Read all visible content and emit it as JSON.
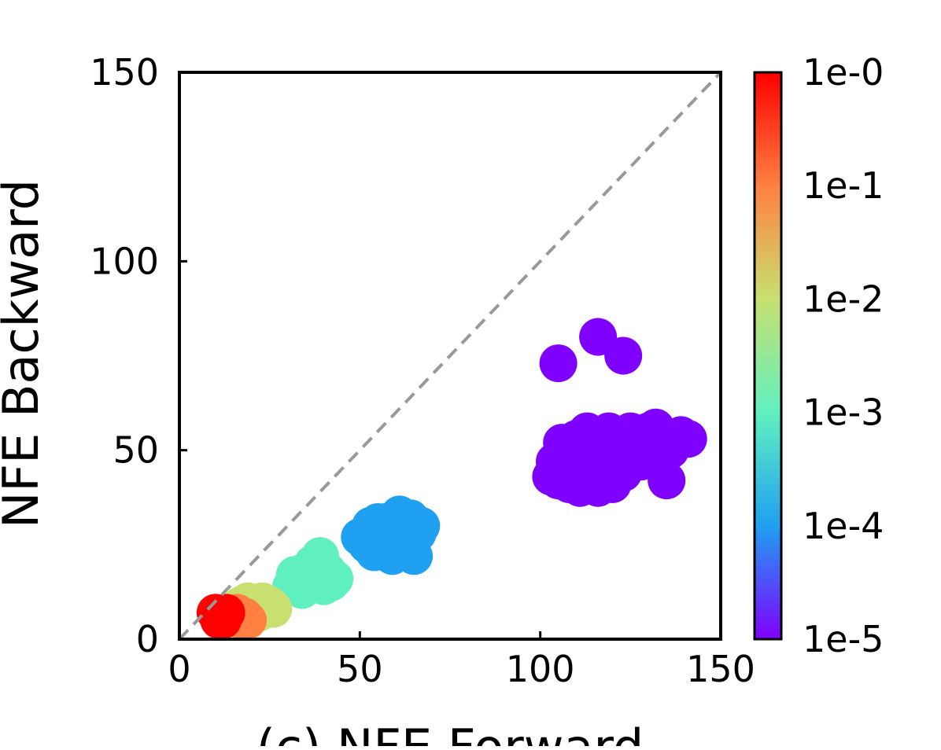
{
  "chart_data": {
    "type": "scatter",
    "title": "",
    "xlabel": "(c) NFE Forward",
    "ylabel": "NFE Backward",
    "xlim": [
      0,
      150
    ],
    "ylim": [
      0,
      150
    ],
    "xticks": [
      0,
      50,
      100,
      150
    ],
    "yticks": [
      0,
      50,
      100,
      150
    ],
    "xtick_labels": [
      "0",
      "50",
      "100",
      "150"
    ],
    "ytick_labels": [
      "0",
      "50",
      "100",
      "150"
    ],
    "grid": false,
    "reference_line": {
      "style": "dashed",
      "color": "#999999",
      "from": [
        0,
        0
      ],
      "to": [
        150,
        150
      ]
    },
    "colorbar": {
      "colormap": "rainbow",
      "scale": "log",
      "labels": [
        "1e-0",
        "1e-1",
        "1e-2",
        "1e-3",
        "1e-4",
        "1e-5"
      ],
      "colors": [
        "#ff0000",
        "#ff8040",
        "#c8e070",
        "#60f0c0",
        "#20a0f0",
        "#7f00ff"
      ]
    },
    "series": [
      {
        "tolerance": "1e-5",
        "color": "#7f00ff",
        "points": [
          [
            103,
            43
          ],
          [
            104,
            47
          ],
          [
            105,
            42
          ],
          [
            106,
            52
          ],
          [
            107,
            45
          ],
          [
            108,
            50
          ],
          [
            108,
            41
          ],
          [
            109,
            48
          ],
          [
            110,
            53
          ],
          [
            110,
            44
          ],
          [
            111,
            40
          ],
          [
            112,
            47
          ],
          [
            112,
            51
          ],
          [
            113,
            55
          ],
          [
            114,
            42
          ],
          [
            114,
            49
          ],
          [
            115,
            45
          ],
          [
            116,
            53
          ],
          [
            116,
            40
          ],
          [
            117,
            47
          ],
          [
            118,
            51
          ],
          [
            118,
            43
          ],
          [
            119,
            55
          ],
          [
            120,
            46
          ],
          [
            120,
            41
          ],
          [
            121,
            50
          ],
          [
            122,
            53
          ],
          [
            123,
            44
          ],
          [
            124,
            48
          ],
          [
            125,
            55
          ],
          [
            126,
            50
          ],
          [
            127,
            52
          ],
          [
            128,
            47
          ],
          [
            130,
            55
          ],
          [
            131,
            51
          ],
          [
            132,
            56
          ],
          [
            134,
            53
          ],
          [
            136,
            50
          ],
          [
            139,
            54
          ],
          [
            141,
            53
          ],
          [
            135,
            42
          ],
          [
            105,
            73
          ],
          [
            116,
            80
          ],
          [
            123,
            75
          ]
        ]
      },
      {
        "tolerance": "1e-4",
        "color": "#20a0f0",
        "points": [
          [
            50,
            27
          ],
          [
            52,
            25
          ],
          [
            53,
            30
          ],
          [
            54,
            23
          ],
          [
            55,
            28
          ],
          [
            56,
            25
          ],
          [
            57,
            31
          ],
          [
            58,
            26
          ],
          [
            59,
            22
          ],
          [
            60,
            29
          ],
          [
            61,
            33
          ],
          [
            62,
            24
          ],
          [
            63,
            30
          ],
          [
            64,
            26
          ],
          [
            65,
            22
          ],
          [
            66,
            28
          ],
          [
            67,
            30
          ],
          [
            55,
            31
          ],
          [
            61,
            27
          ],
          [
            64,
            32
          ]
        ]
      },
      {
        "tolerance": "1e-3",
        "color": "#60f0c0",
        "points": [
          [
            31,
            14
          ],
          [
            32,
            17
          ],
          [
            34,
            13
          ],
          [
            35,
            18
          ],
          [
            36,
            15
          ],
          [
            37,
            20
          ],
          [
            38,
            16
          ],
          [
            39,
            22
          ],
          [
            40,
            14
          ],
          [
            41,
            18
          ],
          [
            42,
            15
          ],
          [
            43,
            16
          ]
        ]
      },
      {
        "tolerance": "1e-2",
        "color": "#c8e070",
        "points": [
          [
            17,
            9
          ],
          [
            19,
            10
          ],
          [
            21,
            9
          ],
          [
            23,
            10
          ],
          [
            25,
            9
          ],
          [
            26,
            8
          ],
          [
            22,
            7
          ],
          [
            19,
            8
          ]
        ]
      },
      {
        "tolerance": "1e-1",
        "color": "#ff8040",
        "points": [
          [
            16,
            7
          ],
          [
            18,
            6
          ],
          [
            19,
            5
          ],
          [
            17,
            5
          ]
        ]
      },
      {
        "tolerance": "1e-0",
        "color": "#ff0000",
        "points": [
          [
            10,
            7
          ],
          [
            12,
            6
          ],
          [
            11,
            5
          ],
          [
            13,
            7
          ],
          [
            12,
            5
          ]
        ]
      }
    ]
  }
}
